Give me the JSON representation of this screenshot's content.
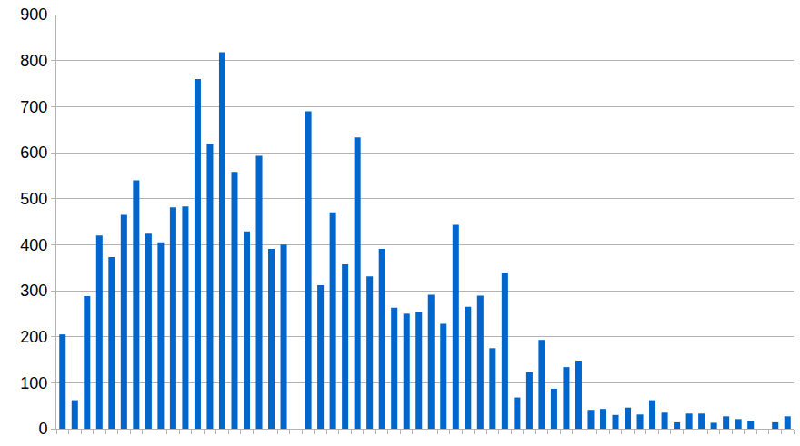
{
  "chart_data": {
    "type": "bar",
    "categories": [
      null,
      null,
      null,
      null,
      null,
      null,
      null,
      null,
      null,
      null,
      null,
      null,
      null,
      null,
      null,
      null,
      null,
      null,
      null,
      null,
      null,
      null,
      null,
      null,
      null,
      null,
      null,
      null,
      null,
      null,
      null,
      null,
      null,
      null,
      null,
      null,
      null,
      null,
      null,
      null,
      null,
      null,
      null,
      null,
      null,
      null,
      null,
      null,
      null,
      null,
      null,
      null,
      null,
      null,
      null,
      null,
      null,
      null,
      null,
      null
    ],
    "values": [
      205,
      62,
      288,
      420,
      373,
      465,
      540,
      424,
      405,
      481,
      483,
      760,
      619,
      818,
      558,
      429,
      593,
      391,
      400,
      0,
      690,
      312,
      470,
      357,
      633,
      331,
      391,
      263,
      250,
      253,
      291,
      228,
      443,
      265,
      289,
      175,
      339,
      68,
      123,
      193,
      87,
      134,
      148,
      41,
      43,
      30,
      46,
      31,
      62,
      35,
      14,
      33,
      33,
      13,
      27,
      21,
      17,
      0,
      14,
      27
    ],
    "color": "#0066cc",
    "ylim": [
      0,
      900
    ],
    "yticks": [
      0,
      100,
      200,
      300,
      400,
      500,
      600,
      700,
      800,
      900
    ],
    "grid": true,
    "tick_labels": "y"
  }
}
